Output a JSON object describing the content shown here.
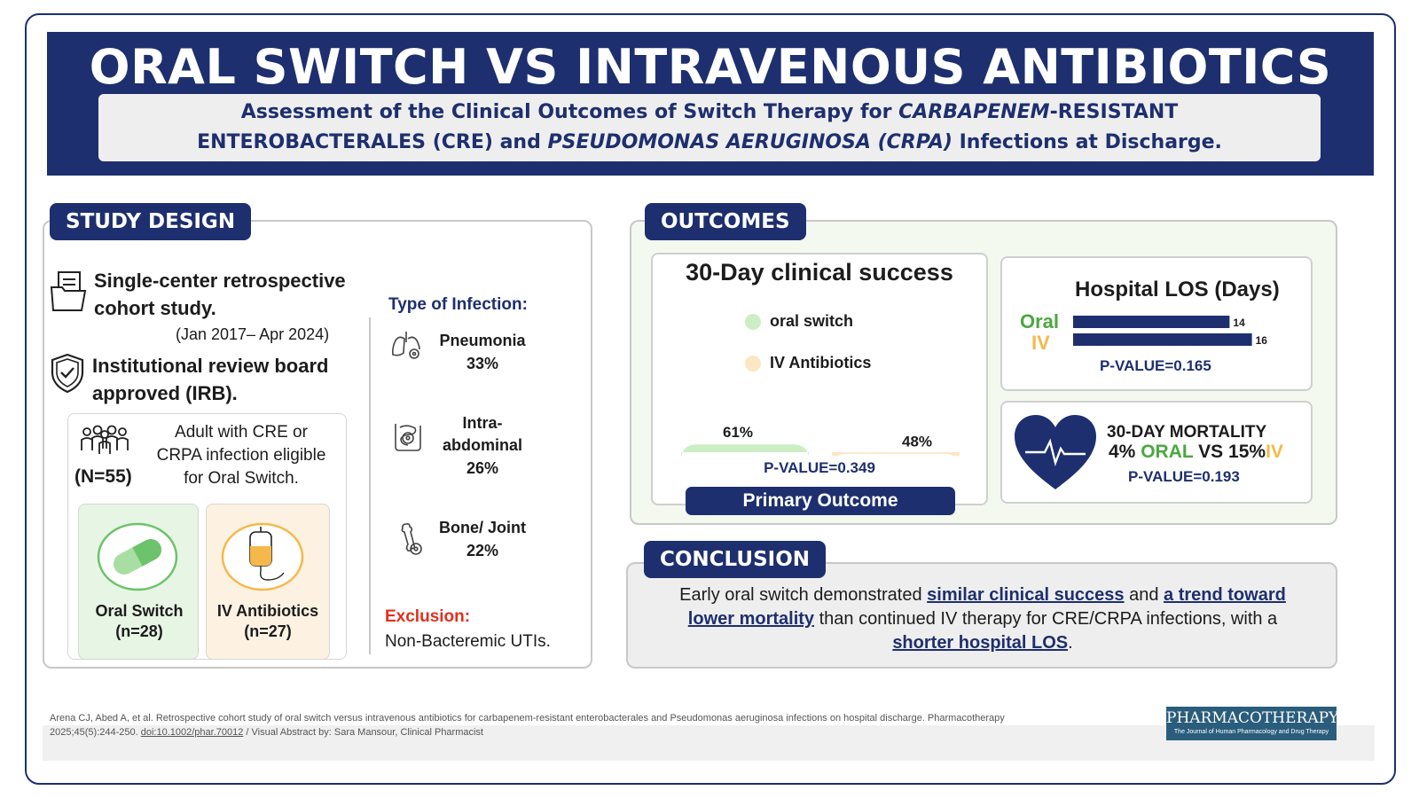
{
  "header": {
    "title": "ORAL SWITCH VS INTRAVENOUS  ANTIBIOTICS",
    "subtitle_line1_a": "Assessment of the Clinical Outcomes of Switch Therapy for ",
    "subtitle_line1_b": "CARBAPENEM",
    "subtitle_line1_c": "-RESISTANT",
    "subtitle_line2_a": "ENTEROBACTERALES (CRE) and ",
    "subtitle_line2_b": "PSEUDOMONAS AERUGINOSA (CRPA)",
    "subtitle_line2_c": " Infections at Discharge."
  },
  "study_design": {
    "tag": "STUDY DESIGN",
    "design_line1": "Single-center retrospective",
    "design_line2": "cohort study.",
    "period": "(Jan 2017– Apr 2024)",
    "irb_line1": "Institutional review board",
    "irb_line2": "approved (IRB).",
    "population_n": "(N=55)",
    "population_line1": "Adult with CRE or",
    "population_line2": "CRPA infection eligible",
    "population_line3": "for Oral Switch.",
    "arms": [
      {
        "label": "Oral Switch",
        "n": "(n=28)",
        "icon": "pill-icon",
        "color": "#e7f5e4"
      },
      {
        "label": "IV Antibiotics",
        "n": "(n=27)",
        "icon": "iv-bag-icon",
        "color": "#fdf2e2"
      }
    ],
    "infection_heading": "Type of Infection:",
    "infections": [
      {
        "name": "Pneumonia",
        "pct": "33%",
        "icon": "lungs-icon"
      },
      {
        "name_line1": "Intra-",
        "name_line2": "abdominal",
        "pct": "26%",
        "icon": "intestine-icon"
      },
      {
        "name": "Bone/ Joint",
        "pct": "22%",
        "icon": "bone-icon"
      }
    ],
    "exclusion_label": "Exclusion:",
    "exclusion_text": "Non-Bacteremic UTIs."
  },
  "outcomes": {
    "tag": "OUTCOMES",
    "clinical_success": {
      "title": "30-Day clinical success",
      "legend": [
        {
          "label": "oral switch",
          "color": "#cdeec5"
        },
        {
          "label": "IV Antibiotics",
          "color": "#fde6c4"
        }
      ],
      "footer_label": "Primary Outcome",
      "pvalue": "P-VALUE=0.349"
    },
    "los": {
      "title": "Hospital LOS (Days)",
      "oral_label": "Oral",
      "iv_label": "IV",
      "pvalue": "P-VALUE=0.165",
      "oral_color": "#4aa83f",
      "iv_color": "#f5b84a"
    },
    "mortality": {
      "title": "30-DAY MORTALITY",
      "oral_pct": "4%",
      "oral_word": "ORAL",
      "vs": "VS",
      "iv_pct": "15%",
      "iv_word": "IV",
      "pvalue": "P-VALUE=0.193"
    }
  },
  "chart_data": [
    {
      "type": "bar",
      "title": "30-Day clinical success",
      "categories": [
        "oral switch",
        "IV Antibiotics"
      ],
      "values": [
        61,
        48
      ],
      "labels": [
        "61%",
        "48%"
      ],
      "unit": "%"
    },
    {
      "type": "bar",
      "title": "Hospital LOS (Days)",
      "categories": [
        "Oral",
        "IV"
      ],
      "values": [
        14,
        16
      ],
      "labels": [
        "14",
        "16"
      ],
      "orientation": "horizontal"
    }
  ],
  "conclusion": {
    "tag": "CONCLUSION",
    "p1": "Early oral switch demonstrated ",
    "u1": "similar clinical success",
    "p2": " and ",
    "u2a": "a trend toward",
    "u2b": "lower mortality",
    "p3": " than continued IV therapy for CRE/CRPA infections, with a",
    "u3": "shorter hospital LOS",
    "p4": "."
  },
  "footer": {
    "citation_line1": "Arena CJ, Abed A, et al. Retrospective cohort study of oral switch versus intravenous antibiotics for carbapenem-resistant enterobacterales and Pseudomonas aeruginosa infections on hospital discharge. Pharmacotherapy",
    "citation_line2a": "2025;45(5):244-250. ",
    "doi": "doi:10.1002/phar.70012",
    "citation_line2b": " / Visual Abstract by: Sara Mansour, Clinical Pharmacist",
    "journal": "PHARMACOTHERAPY",
    "journal_sub": "The Journal of Human Pharmacology and Drug Therapy"
  }
}
